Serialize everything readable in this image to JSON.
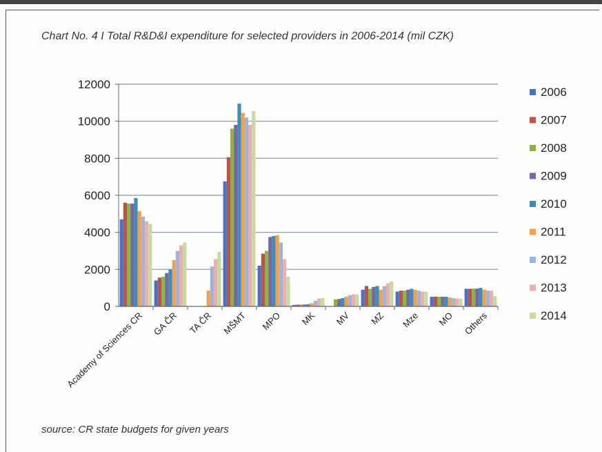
{
  "title": "Chart No. 4 I Total R&D&I expenditure for selected providers in 2006-2014 (mil CZK)",
  "source": "source: CR state budgets for given years",
  "chart_data": {
    "type": "bar",
    "title": "Chart No. 4 I Total R&D&I expenditure for selected providers in 2006-2014 (mil CZK)",
    "xlabel": "",
    "ylabel": "",
    "ylim": [
      0,
      12000
    ],
    "yticks": [
      0,
      2000,
      4000,
      6000,
      8000,
      10000,
      12000
    ],
    "grid": true,
    "legend_position": "right",
    "categories": [
      "Academy of Sciences CR",
      "GA ČR",
      "TA ČR",
      "MŠMT",
      "MPO",
      "MK",
      "MV",
      "MZ",
      "Mze",
      "MO",
      "Others"
    ],
    "series": [
      {
        "name": "2006",
        "color": "#4a72c4",
        "values": [
          4700,
          1400,
          0,
          6750,
          2200,
          80,
          0,
          900,
          800,
          520,
          950
        ]
      },
      {
        "name": "2007",
        "color": "#c0504d",
        "values": [
          5600,
          1550,
          0,
          8050,
          2850,
          90,
          0,
          1100,
          850,
          530,
          950
        ]
      },
      {
        "name": "2008",
        "color": "#8fb04a",
        "values": [
          5550,
          1600,
          0,
          9600,
          3000,
          100,
          380,
          950,
          850,
          520,
          960
        ]
      },
      {
        "name": "2009",
        "color": "#7b63a8",
        "values": [
          5550,
          1800,
          0,
          9800,
          3750,
          100,
          400,
          1050,
          900,
          520,
          960
        ]
      },
      {
        "name": "2010",
        "color": "#3a8fb8",
        "values": [
          5850,
          2000,
          0,
          10950,
          3800,
          120,
          450,
          1100,
          950,
          520,
          1000
        ]
      },
      {
        "name": "2011",
        "color": "#f0a050",
        "values": [
          5150,
          2500,
          850,
          10450,
          3850,
          170,
          520,
          900,
          900,
          480,
          900
        ]
      },
      {
        "name": "2012",
        "color": "#9bb5e0",
        "values": [
          4850,
          3000,
          2150,
          10200,
          3450,
          300,
          600,
          1100,
          850,
          440,
          850
        ]
      },
      {
        "name": "2013",
        "color": "#e6b1b1",
        "values": [
          4600,
          3300,
          2550,
          9800,
          2550,
          420,
          650,
          1250,
          800,
          430,
          850
        ]
      },
      {
        "name": "2014",
        "color": "#c6dba0",
        "values": [
          4450,
          3450,
          2950,
          10550,
          1600,
          450,
          650,
          1350,
          800,
          420,
          550
        ]
      }
    ]
  }
}
